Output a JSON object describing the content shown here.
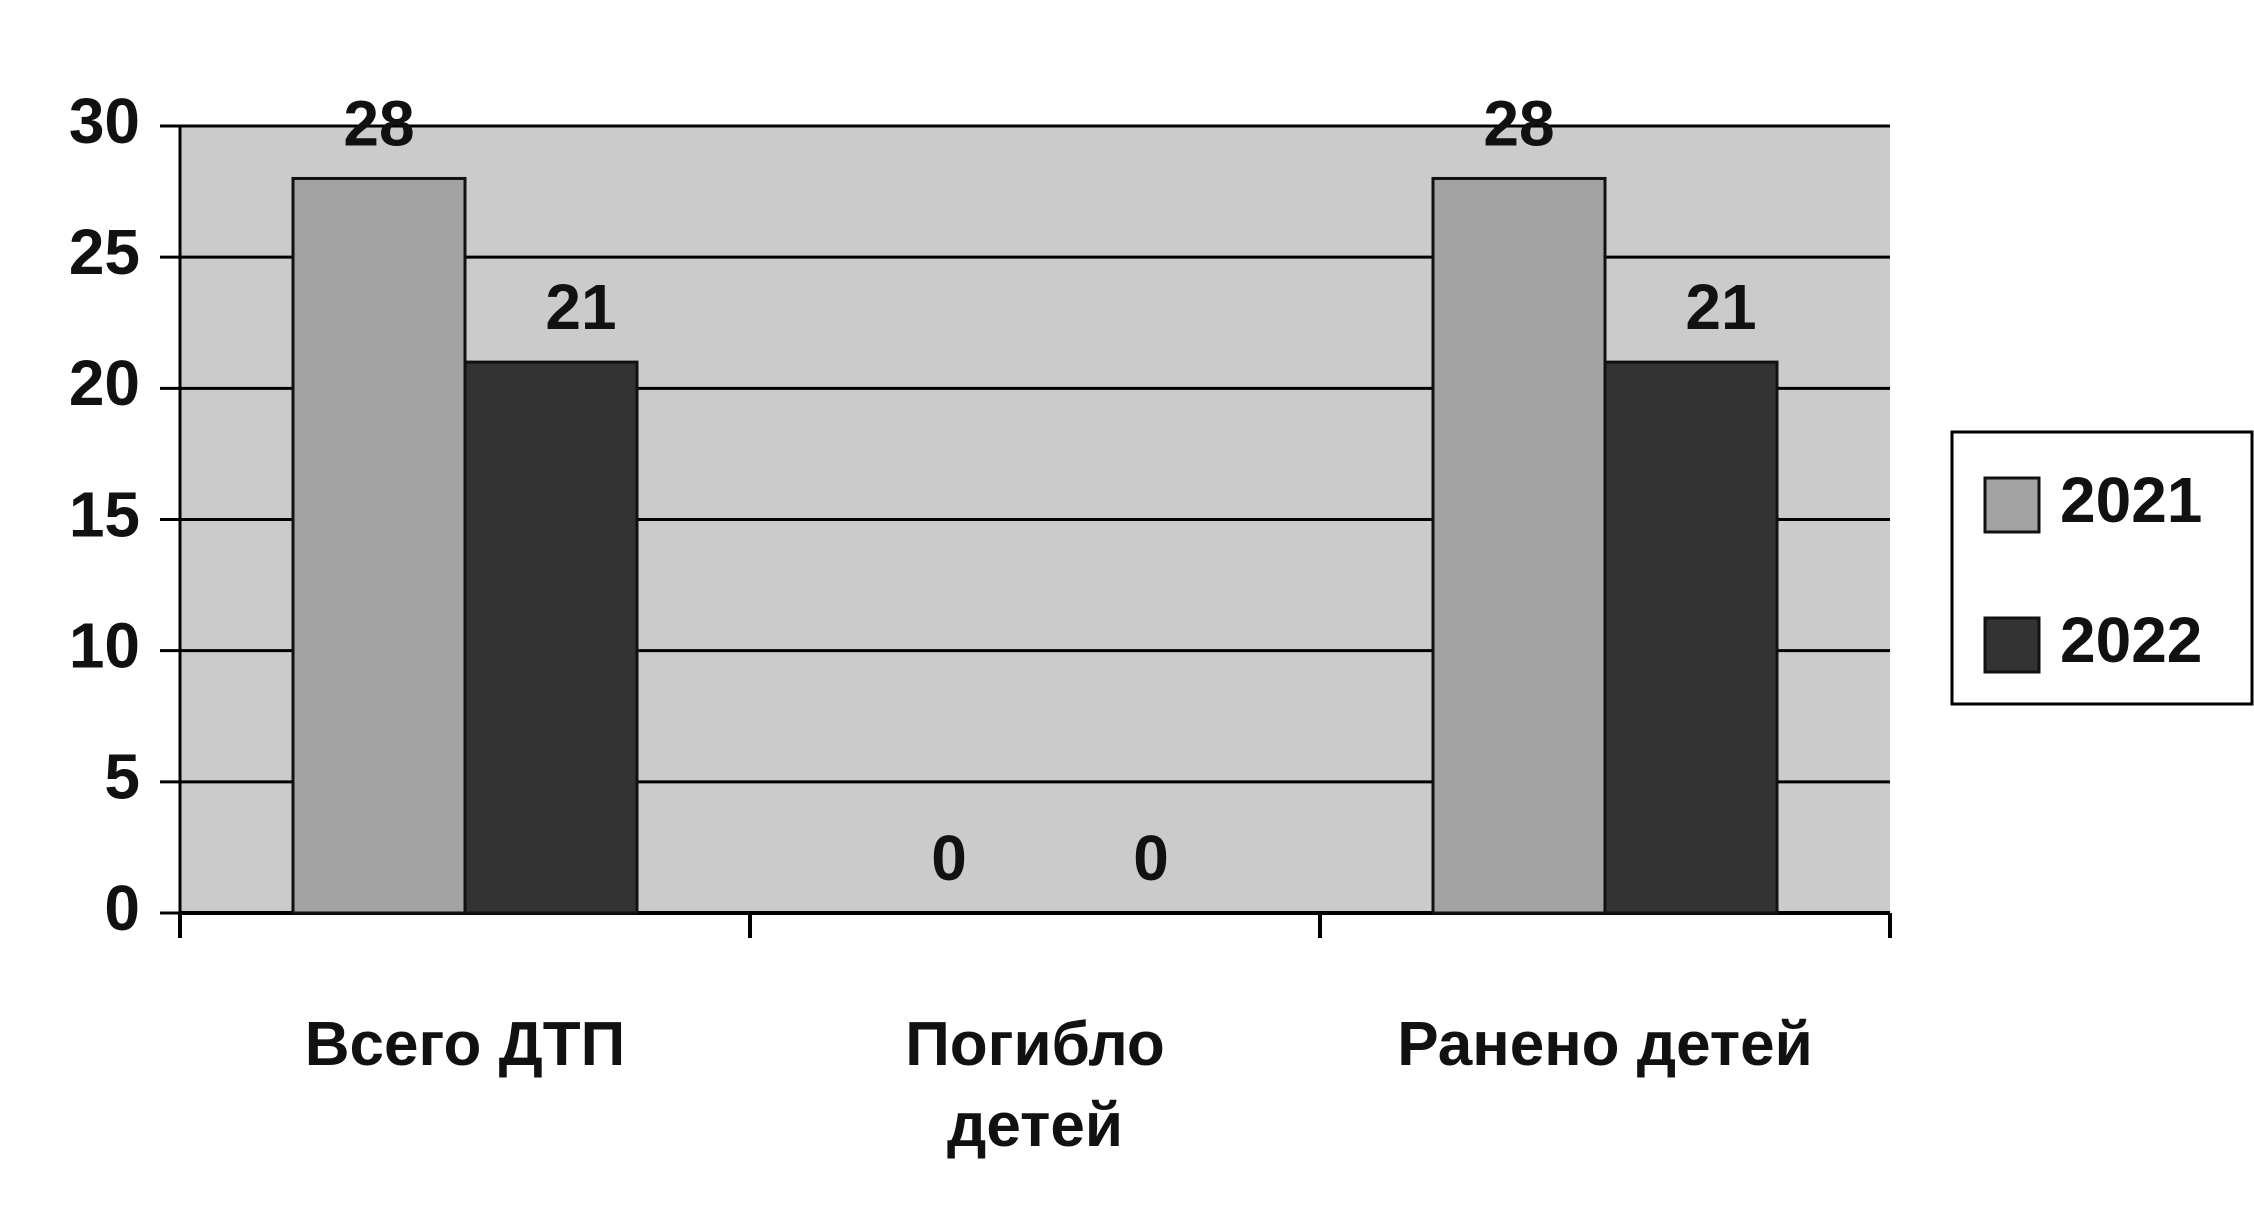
{
  "chart_data": {
    "type": "bar",
    "categories": [
      "Всего ДТП",
      "Погибло детей",
      "Ранено детей"
    ],
    "series": [
      {
        "name": "2021",
        "color": "#a3a3a3",
        "values": [
          28,
          0,
          28
        ]
      },
      {
        "name": "2022",
        "color": "#333333",
        "values": [
          21,
          0,
          21
        ]
      }
    ],
    "ylim": [
      0,
      30
    ],
    "yticks": [
      0,
      5,
      10,
      15,
      20,
      25,
      30
    ],
    "grid": true,
    "legend": "right"
  }
}
